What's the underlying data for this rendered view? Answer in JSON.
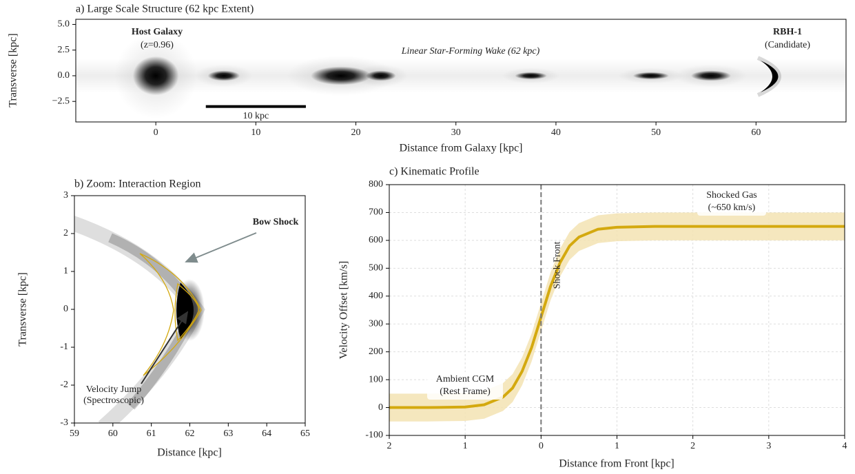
{
  "chart_data": [
    {
      "type": "image",
      "title": "a) Large Scale Structure (62 kpc Extent)",
      "xlabel": "Distance from Galaxy [kpc]",
      "ylabel": "Transverse [kpc]",
      "xlim": [
        -8,
        69
      ],
      "ylim": [
        -4.5,
        5.5
      ],
      "xticks": [
        0,
        10,
        20,
        30,
        40,
        50,
        60
      ],
      "yticks": [
        {
          "value": 5,
          "label": "5.0"
        },
        {
          "value": 2.5,
          "label": "2.5"
        },
        {
          "value": 0,
          "label": "0.0"
        },
        {
          "value": -2.5,
          "label": "−2.5"
        }
      ],
      "clumps": {
        "x": [
          0,
          6.8,
          18.5,
          22.5,
          37.5,
          49.5,
          55.5
        ],
        "width": [
          2.3,
          1.6,
          3.0,
          1.5,
          1.6,
          1.8,
          2.0
        ],
        "height": [
          1.9,
          0.5,
          0.9,
          0.5,
          0.35,
          0.35,
          0.5
        ]
      },
      "scalebar": {
        "x": [
          5,
          15
        ],
        "y": -3,
        "label": "10 kpc"
      },
      "annotations": {
        "host": [
          "Host Galaxy",
          "(z=0.96)"
        ],
        "wake": "Linear Star-Forming Wake (62 kpc)",
        "target": [
          "RBH-1",
          "(Candidate)"
        ]
      }
    },
    {
      "type": "image",
      "title": "b) Zoom: Interaction Region",
      "xlabel": "Distance [kpc]",
      "ylabel": "Transverse [kpc]",
      "xlim": [
        59,
        65
      ],
      "ylim": [
        -3,
        3
      ],
      "xticks": [
        59,
        60,
        61,
        62,
        63,
        64,
        65
      ],
      "yticks": [
        -3,
        -2,
        -1,
        0,
        1,
        2,
        3
      ],
      "annotations": {
        "shock": "Bow Shock",
        "jump": [
          "Velocity Jump",
          "(Spectroscopic)"
        ]
      }
    },
    {
      "type": "line",
      "title": "c) Kinematic Profile",
      "xlabel": "Distance from Front [kpc]",
      "ylabel": "Velocity Offset [km/s]",
      "xlim": [
        -2,
        4
      ],
      "ylim": [
        -100,
        800
      ],
      "xticks": [
        {
          "value": -2,
          "label": "2"
        },
        {
          "value": -1,
          "label": "1"
        },
        0,
        1,
        2,
        3,
        4
      ],
      "yticks": [
        -100,
        0,
        100,
        200,
        300,
        400,
        500,
        600,
        700,
        800
      ],
      "grid": true,
      "color": "#d4a90f",
      "band_color": "#f3e3b3",
      "x": [
        -2,
        -1.5,
        -1,
        -0.75,
        -0.5,
        -0.375,
        -0.25,
        -0.125,
        0,
        0.125,
        0.25,
        0.375,
        0.5,
        0.75,
        1,
        1.5,
        2,
        3,
        4
      ],
      "values": [
        0,
        0,
        2,
        10,
        38,
        70,
        130,
        215,
        325,
        435,
        520,
        580,
        612,
        640,
        647,
        650,
        650,
        650,
        650
      ],
      "band": {
        "lower": [
          -50,
          -50,
          -48,
          -40,
          -12,
          20,
          80,
          165,
          275,
          385,
          470,
          530,
          562,
          590,
          597,
          600,
          600,
          600,
          600
        ],
        "upper": [
          50,
          50,
          52,
          60,
          88,
          120,
          180,
          265,
          375,
          485,
          570,
          630,
          662,
          690,
          697,
          700,
          700,
          700,
          700
        ]
      },
      "vline": {
        "x": 0,
        "label": "Shock Front"
      },
      "annotations": {
        "ambient": [
          "Ambient CGM",
          "(Rest Frame)"
        ],
        "shocked": [
          "Shocked Gas",
          "(~650 km/s)"
        ]
      }
    }
  ]
}
